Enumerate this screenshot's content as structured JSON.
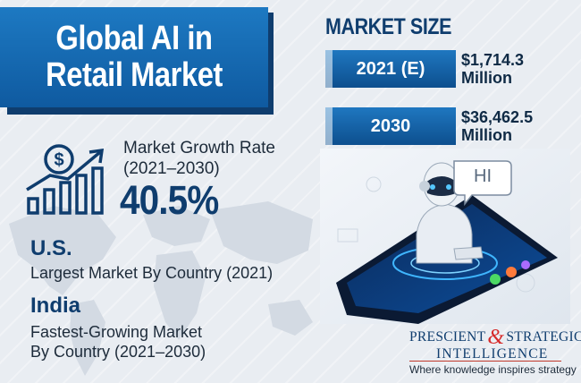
{
  "title": "Global AI in Retail Market",
  "growth": {
    "label": "Market Growth Rate",
    "period": "(2021–2030)",
    "value": "40.5%",
    "icon": "dollar-growth-chart-icon"
  },
  "countries": [
    {
      "name": "U.S.",
      "description_lines": [
        "Largest Market By Country (2021)"
      ]
    },
    {
      "name": "India",
      "description_lines": [
        "Fastest-Growing Market",
        "By Country (2021–2030)"
      ]
    }
  ],
  "market_size": {
    "heading": "MARKET SIZE",
    "rows": [
      {
        "year": "2021 (E)",
        "value_line1": "$1,714.3",
        "value_line2": "Million"
      },
      {
        "year": "2030",
        "value_line1": "$36,462.5",
        "value_line2": "Million"
      }
    ]
  },
  "illustration": {
    "speech_bubble": "HI"
  },
  "logo": {
    "word1": "PRESCIENT",
    "amp": "&",
    "word2": "STRATEGIC",
    "word3": "INTELLIGENCE",
    "tagline": "Where knowledge inspires strategy"
  },
  "colors": {
    "primary": "#0f3d6e",
    "accent": "#1d79c2",
    "logo_red": "#d62a2a",
    "background": "#e9edf2"
  }
}
